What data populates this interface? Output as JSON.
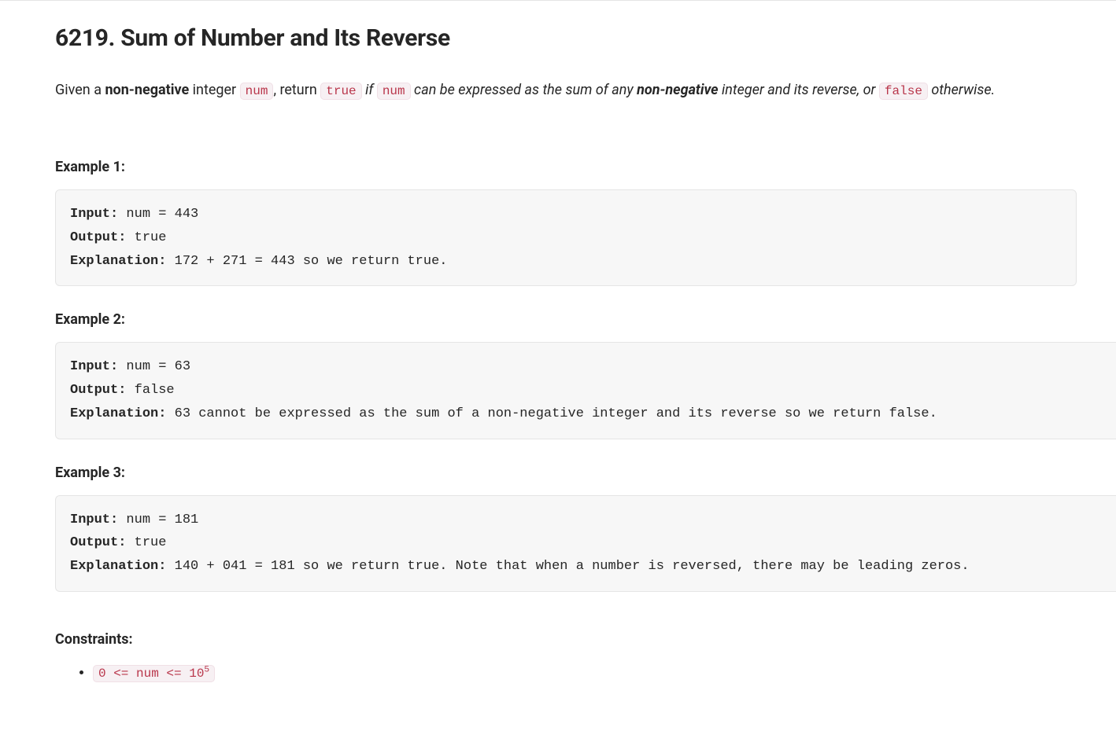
{
  "problem": {
    "number": "6219",
    "title": "Sum of Number and Its Reverse",
    "desc": {
      "t1": "Given a ",
      "b1": "non-negative",
      "t2": " integer ",
      "c1": "num",
      "t3": ", return ",
      "c2": "true",
      "i1": " if ",
      "c3": "num",
      "i2": " can be expressed as the sum of any ",
      "b2": "non-negative",
      "i3": " integer and its reverse, or ",
      "c4": "false",
      "i4": " otherwise."
    }
  },
  "labels": {
    "input": "Input:",
    "output": "Output:",
    "explanation": "Explanation:",
    "constraints": "Constraints:"
  },
  "examples": [
    {
      "label": "Example 1:",
      "input": " num = 443",
      "output": " true",
      "explanation": " 172 + 271 = 443 so we return true."
    },
    {
      "label": "Example 2:",
      "input": " num = 63",
      "output": " false",
      "explanation": " 63 cannot be expressed as the sum of a non-negative integer and its reverse so we return false."
    },
    {
      "label": "Example 3:",
      "input": " num = 181",
      "output": " true",
      "explanation": " 140 + 041 = 181 so we return true. Note that when a number is reversed, there may be leading zeros."
    }
  ],
  "constraint": {
    "pre": "0 <= num <= 10",
    "sup": "5"
  },
  "colors": {
    "background": "#ffffff",
    "text": "#262626",
    "code_bg": "#f7f0f3",
    "code_border": "#f0e0e6",
    "code_text": "#b9364b",
    "example_bg": "#f7f7f7",
    "example_border": "#e5e5e5"
  }
}
